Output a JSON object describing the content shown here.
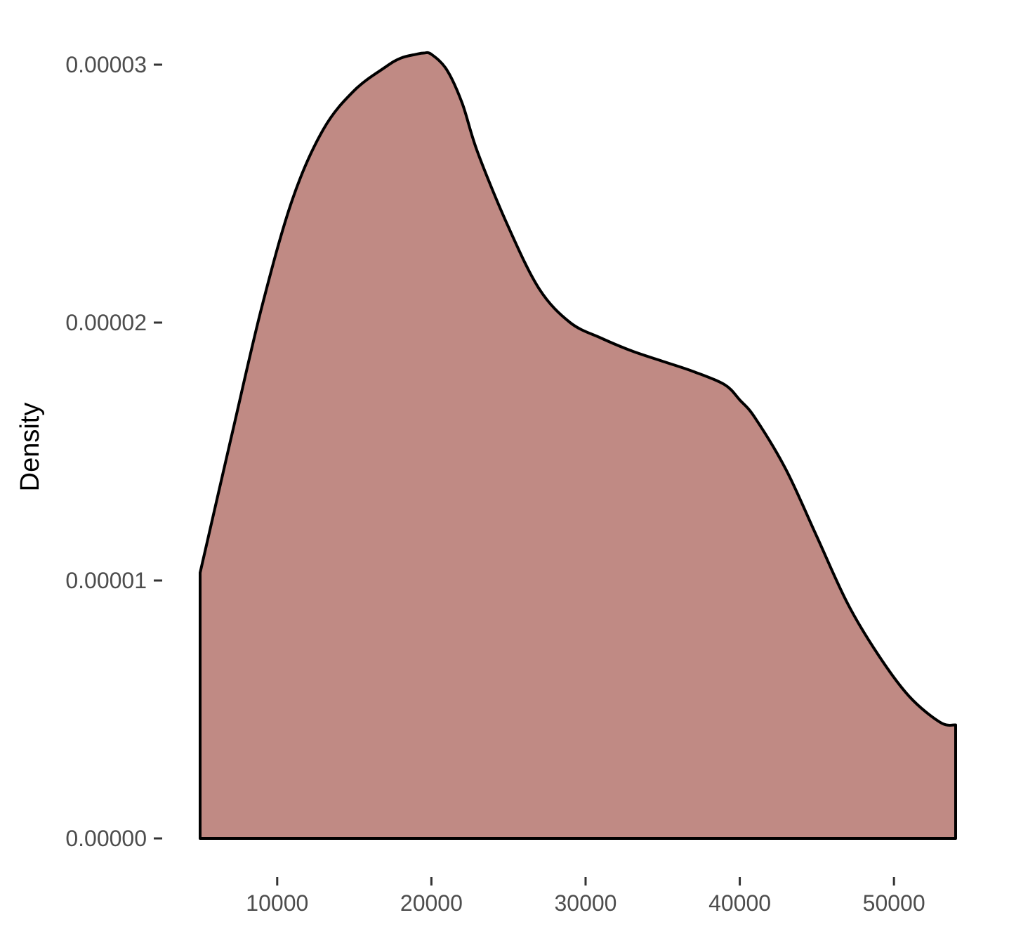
{
  "chart_data": {
    "type": "area",
    "title": "",
    "xlabel": "",
    "ylabel": "Density",
    "xlim": [
      5000,
      54000
    ],
    "ylim": [
      0,
      3e-05
    ],
    "x_ticks": [
      10000,
      20000,
      30000,
      40000,
      50000
    ],
    "x_tick_labels": [
      "10000",
      "20000",
      "30000",
      "40000",
      "50000"
    ],
    "y_ticks": [
      0,
      1e-05,
      2e-05,
      3e-05
    ],
    "y_tick_labels": [
      "0.00000",
      "0.00001",
      "0.00002",
      "0.00003"
    ],
    "grid": false,
    "legend": "none",
    "fill_color": "#c08a84",
    "line_color": "#000000",
    "series": [
      {
        "x": [
          5000,
          7000,
          9000,
          11000,
          13000,
          15000,
          17000,
          18000,
          19000,
          19500,
          20000,
          21000,
          22000,
          23000,
          25000,
          27000,
          29000,
          31000,
          33000,
          35000,
          37000,
          39000,
          40000,
          41000,
          43000,
          45000,
          47000,
          49000,
          51000,
          53000,
          54000
        ],
        "y": [
          1.03e-05,
          1.55e-05,
          2.06e-05,
          2.48e-05,
          2.75e-05,
          2.9e-05,
          2.99e-05,
          3.025e-05,
          3.04e-05,
          3.045e-05,
          3.04e-05,
          2.98e-05,
          2.85e-05,
          2.66e-05,
          2.37e-05,
          2.13e-05,
          2e-05,
          1.94e-05,
          1.89e-05,
          1.85e-05,
          1.81e-05,
          1.76e-05,
          1.7e-05,
          1.63e-05,
          1.43e-05,
          1.17e-05,
          9.1e-06,
          7.1e-06,
          5.5e-06,
          4.5e-06,
          4.4e-06
        ]
      }
    ]
  }
}
